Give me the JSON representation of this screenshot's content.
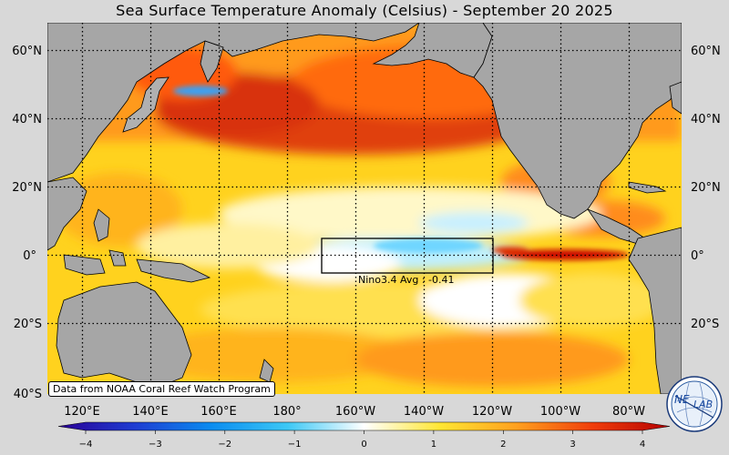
{
  "title": "Sea Surface Temperature Anomaly (Celsius) - September 20 2025",
  "map": {
    "lat_labels": [
      "60°N",
      "40°N",
      "20°N",
      "0°",
      "20°S",
      "40°S"
    ],
    "lat_values": [
      60,
      40,
      20,
      0,
      -20,
      -40
    ],
    "lon_labels": [
      "120°E",
      "140°E",
      "160°E",
      "180°",
      "160°W",
      "140°W",
      "120°W",
      "100°W",
      "80°W"
    ],
    "lon_values": [
      120,
      140,
      160,
      180,
      200,
      220,
      240,
      260,
      280
    ],
    "lon_range": [
      110,
      295
    ],
    "lat_range": [
      -40,
      68
    ],
    "land_color": "#a6a6a6",
    "grid_style": "dotted"
  },
  "nino_box": {
    "label": "Nino3.4 Avg : -0.41",
    "lon": [
      190,
      240
    ],
    "lat": [
      -5,
      5
    ],
    "average": -0.41
  },
  "colorbar": {
    "min": -4,
    "max": 4,
    "ticks": [
      "−4",
      "−3",
      "−2",
      "−1",
      "0",
      "1",
      "2",
      "3",
      "4"
    ],
    "colors": [
      "#2a0096",
      "#1e3cd2",
      "#0a8cf0",
      "#3cc8f5",
      "#ffffff",
      "#ffe632",
      "#ffa01e",
      "#f03c0a",
      "#b40000"
    ]
  },
  "source_note": "Data from NOAA Coral Reef Watch Program",
  "logo": {
    "text_left": "NE",
    "text_right": "LAB",
    "icon": "nexlab-globe-logo"
  }
}
